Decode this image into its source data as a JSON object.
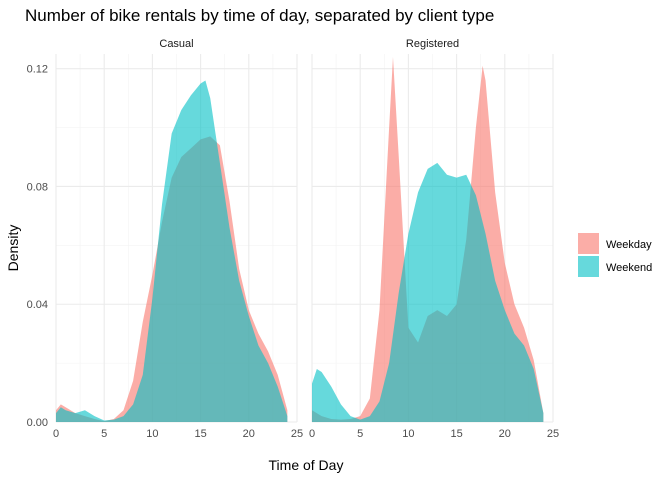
{
  "chart_data": {
    "type": "area",
    "title": "Number of bike rentals by time of day, separated by client type",
    "xlabel": "Time of Day",
    "ylabel": "Density",
    "xlim": [
      0,
      25
    ],
    "ylim": [
      0,
      0.125
    ],
    "x_ticks": [
      "0",
      "5",
      "10",
      "15",
      "20",
      "25"
    ],
    "x_tick_values": [
      0,
      5,
      10,
      15,
      20,
      25
    ],
    "y_ticks": [
      "0.00",
      "0.04",
      "0.08",
      "0.12"
    ],
    "y_tick_values": [
      0,
      0.04,
      0.08,
      0.12
    ],
    "grid": true,
    "legend_position": "right",
    "facets": [
      {
        "label": "Casual",
        "series": [
          {
            "name": "Weekday",
            "color": "#F8766D",
            "points": [
              [
                0,
                0.004
              ],
              [
                0.5,
                0.006
              ],
              [
                1,
                0.005
              ],
              [
                2,
                0.003
              ],
              [
                3,
                0.002
              ],
              [
                4,
                0.001
              ],
              [
                5,
                0.0003
              ],
              [
                6,
                0.001
              ],
              [
                7,
                0.004
              ],
              [
                8,
                0.014
              ],
              [
                9,
                0.034
              ],
              [
                10,
                0.05
              ],
              [
                11,
                0.068
              ],
              [
                12,
                0.083
              ],
              [
                13,
                0.09
              ],
              [
                14,
                0.093
              ],
              [
                15,
                0.096
              ],
              [
                16,
                0.097
              ],
              [
                17,
                0.094
              ],
              [
                18,
                0.075
              ],
              [
                19,
                0.052
              ],
              [
                20,
                0.038
              ],
              [
                21,
                0.03
              ],
              [
                22,
                0.024
              ],
              [
                23,
                0.016
              ],
              [
                24,
                0.004
              ]
            ]
          },
          {
            "name": "Weekend",
            "color": "#00BFC4",
            "points": [
              [
                0,
                0.003
              ],
              [
                0.5,
                0.005
              ],
              [
                1,
                0.004
              ],
              [
                2,
                0.003
              ],
              [
                3,
                0.004
              ],
              [
                4,
                0.002
              ],
              [
                5,
                0.0005
              ],
              [
                6,
                0.0008
              ],
              [
                7,
                0.002
              ],
              [
                8,
                0.006
              ],
              [
                9,
                0.016
              ],
              [
                10,
                0.042
              ],
              [
                11,
                0.074
              ],
              [
                12,
                0.098
              ],
              [
                13,
                0.106
              ],
              [
                14,
                0.111
              ],
              [
                15,
                0.115
              ],
              [
                15.5,
                0.116
              ],
              [
                16,
                0.11
              ],
              [
                17,
                0.088
              ],
              [
                18,
                0.066
              ],
              [
                19,
                0.048
              ],
              [
                20,
                0.036
              ],
              [
                21,
                0.026
              ],
              [
                22,
                0.02
              ],
              [
                23,
                0.012
              ],
              [
                24,
                0.002
              ]
            ]
          }
        ]
      },
      {
        "label": "Registered",
        "series": [
          {
            "name": "Weekday",
            "color": "#F8766D",
            "points": [
              [
                0,
                0.004
              ],
              [
                1,
                0.002
              ],
              [
                2,
                0.001
              ],
              [
                3,
                0.0008
              ],
              [
                4,
                0.001
              ],
              [
                5,
                0.002
              ],
              [
                6,
                0.008
              ],
              [
                7,
                0.038
              ],
              [
                8,
                0.1
              ],
              [
                8.4,
                0.124
              ],
              [
                9,
                0.09
              ],
              [
                10,
                0.032
              ],
              [
                11,
                0.027
              ],
              [
                12,
                0.036
              ],
              [
                13,
                0.038
              ],
              [
                14,
                0.036
              ],
              [
                15,
                0.04
              ],
              [
                16,
                0.062
              ],
              [
                17,
                0.1
              ],
              [
                17.7,
                0.121
              ],
              [
                18,
                0.116
              ],
              [
                19,
                0.078
              ],
              [
                20,
                0.054
              ],
              [
                21,
                0.04
              ],
              [
                22,
                0.032
              ],
              [
                23,
                0.021
              ],
              [
                24,
                0.003
              ]
            ]
          },
          {
            "name": "Weekend",
            "color": "#00BFC4",
            "points": [
              [
                0,
                0.013
              ],
              [
                0.5,
                0.018
              ],
              [
                1,
                0.017
              ],
              [
                2,
                0.012
              ],
              [
                3,
                0.006
              ],
              [
                4,
                0.002
              ],
              [
                5,
                0.0008
              ],
              [
                6,
                0.002
              ],
              [
                7,
                0.007
              ],
              [
                8,
                0.02
              ],
              [
                9,
                0.044
              ],
              [
                10,
                0.064
              ],
              [
                11,
                0.078
              ],
              [
                12,
                0.086
              ],
              [
                13,
                0.088
              ],
              [
                14,
                0.084
              ],
              [
                15,
                0.083
              ],
              [
                16,
                0.084
              ],
              [
                17,
                0.077
              ],
              [
                18,
                0.064
              ],
              [
                19,
                0.048
              ],
              [
                20,
                0.038
              ],
              [
                21,
                0.03
              ],
              [
                22,
                0.026
              ],
              [
                23,
                0.018
              ],
              [
                24,
                0.003
              ]
            ]
          }
        ]
      }
    ]
  }
}
